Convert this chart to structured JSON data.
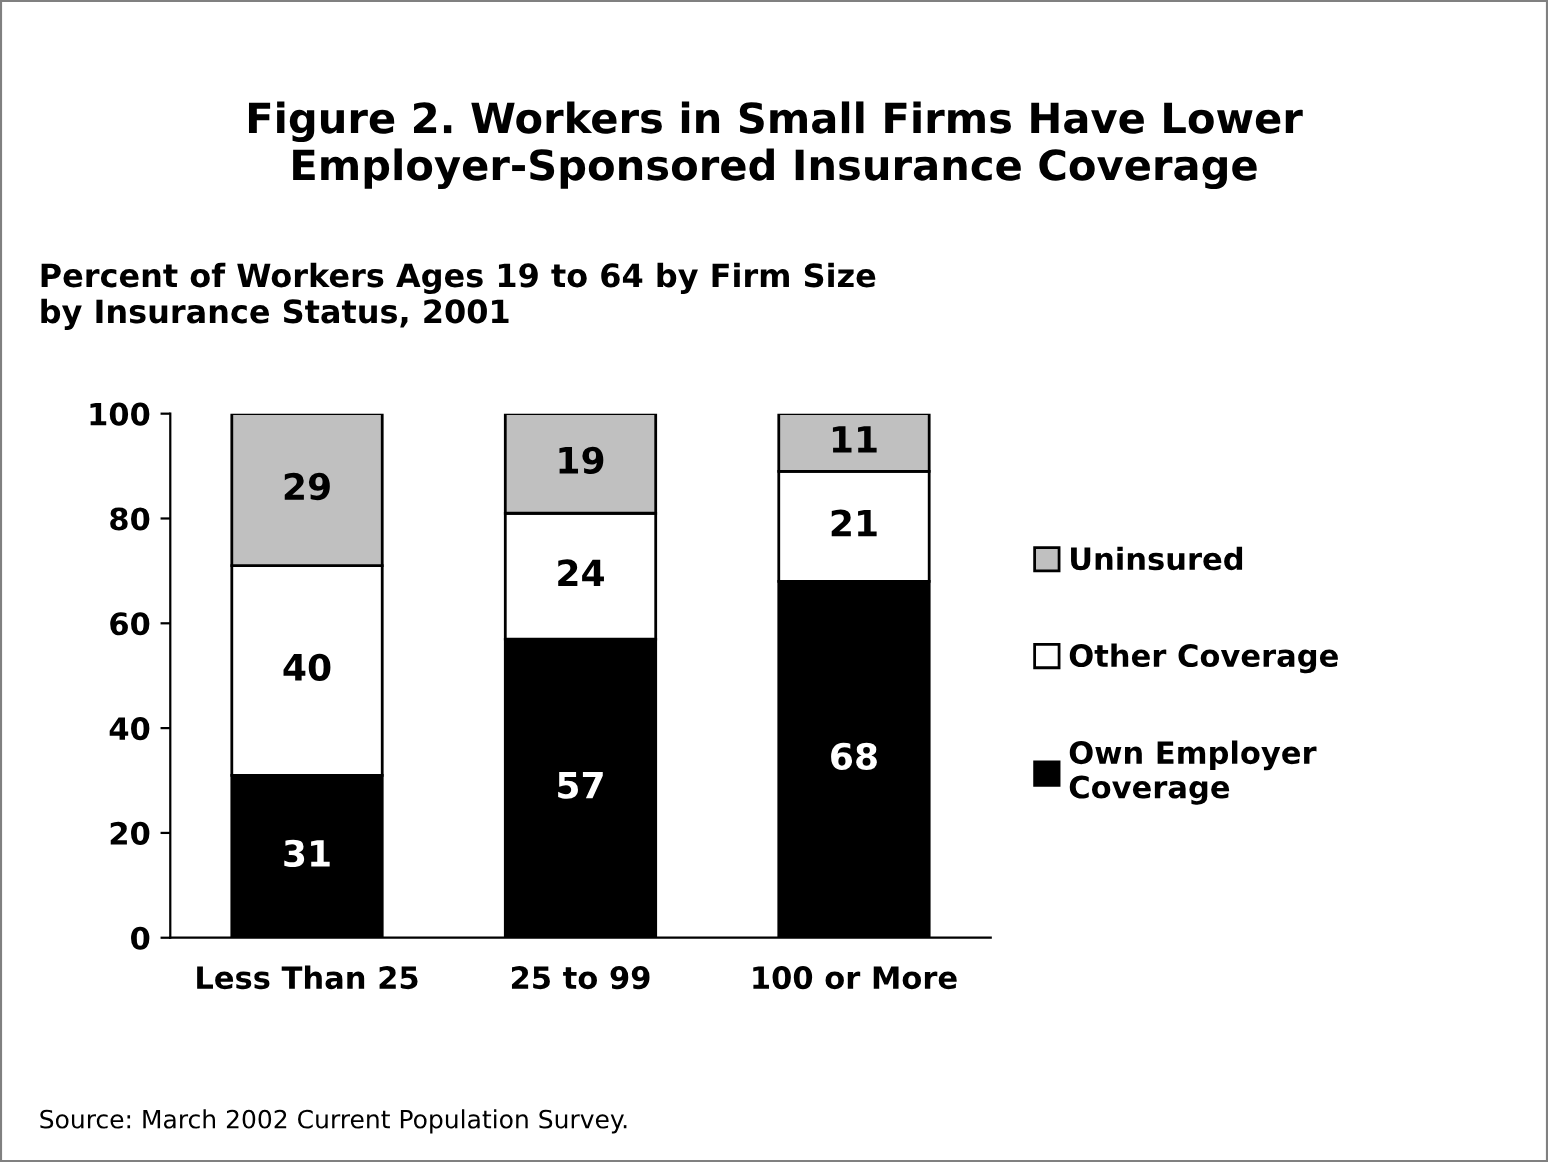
{
  "chart_data": {
    "type": "bar",
    "stacked": true,
    "title": "Figure 2. Workers in Small Firms Have Lower\nEmployer-Sponsored Insurance Coverage",
    "subtitle": "Percent of Workers Ages 19 to 64 by Firm Size\nby Insurance Status, 2001",
    "categories": [
      "Less Than 25",
      "25 to 99",
      "100 or More"
    ],
    "series": [
      {
        "name": "Own Employer\nCoverage",
        "color": "#000000",
        "values": [
          31,
          57,
          68
        ]
      },
      {
        "name": "Other Coverage",
        "color": "#ffffff",
        "values": [
          40,
          24,
          21
        ]
      },
      {
        "name": "Uninsured",
        "color": "#c0c0c0",
        "values": [
          29,
          19,
          11
        ]
      }
    ],
    "ylim": [
      0,
      100
    ],
    "yticks": [
      0,
      20,
      40,
      60,
      80,
      100
    ],
    "data_labels": true,
    "grid": false,
    "legend": "right",
    "annotations": [
      "Source: March 2002 Current Population Survey."
    ]
  }
}
